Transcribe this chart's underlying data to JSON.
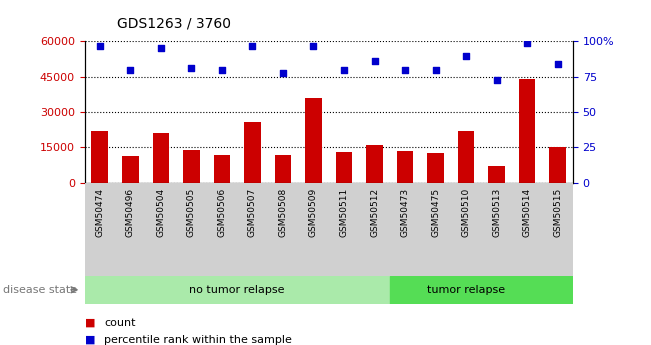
{
  "title": "GDS1263 / 3760",
  "samples": [
    "GSM50474",
    "GSM50496",
    "GSM50504",
    "GSM50505",
    "GSM50506",
    "GSM50507",
    "GSM50508",
    "GSM50509",
    "GSM50511",
    "GSM50512",
    "GSM50473",
    "GSM50475",
    "GSM50510",
    "GSM50513",
    "GSM50514",
    "GSM50515"
  ],
  "counts": [
    22000,
    11500,
    21000,
    14000,
    12000,
    26000,
    12000,
    36000,
    13000,
    16000,
    13500,
    12500,
    22000,
    7000,
    44000,
    15000
  ],
  "percentiles": [
    97,
    80,
    95,
    81,
    80,
    97,
    78,
    97,
    80,
    86,
    80,
    80,
    90,
    73,
    99,
    84
  ],
  "bar_color": "#cc0000",
  "dot_color": "#0000cc",
  "no_tumor_count": 10,
  "tumor_relapse_count": 6,
  "no_tumor_label": "no tumor relapse",
  "tumor_label": "tumor relapse",
  "disease_state_label": "disease state",
  "legend_count": "count",
  "legend_percentile": "percentile rank within the sample",
  "ylim_left": [
    0,
    60000
  ],
  "ylim_right": [
    0,
    100
  ],
  "yticks_left": [
    0,
    15000,
    30000,
    45000,
    60000
  ],
  "yticks_right": [
    0,
    25,
    50,
    75,
    100
  ],
  "left_axis_color": "#cc0000",
  "right_axis_color": "#0000cc",
  "no_tumor_color": "#aaeaaa",
  "tumor_color": "#55dd55",
  "label_area_color": "#d0d0d0",
  "background_color": "#ffffff"
}
